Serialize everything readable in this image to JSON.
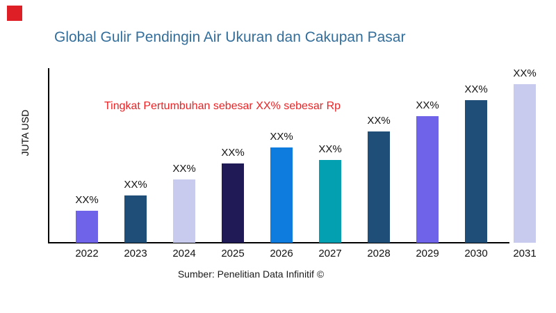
{
  "brand": {
    "logo_color": "#DF1F26"
  },
  "header": {
    "title": "Global Gulir Pendingin Air Ukuran dan Cakupan Pasar",
    "title_color": "#336E9B"
  },
  "annotation": {
    "text": "Tingkat Pertumbuhan sebesar XX% sebesar Rp",
    "color": "#EC2224"
  },
  "axes": {
    "y_label": "JUTA USD",
    "x_label": ""
  },
  "footer": {
    "source": "Sumber: Penelitian Data Infinitif ©"
  },
  "chart_data": {
    "type": "bar",
    "title": "Global Gulir Pendingin Air Ukuran dan Cakupan Pasar",
    "categories": [
      "2022",
      "2023",
      "2024",
      "2025",
      "2026",
      "2027",
      "2028",
      "2029",
      "2030",
      "2031"
    ],
    "values": [
      20,
      30,
      40,
      50,
      60,
      52,
      70,
      80,
      90,
      100
    ],
    "value_note": "relative bar heights, index where 2031 = 100; actual values masked as XX% in source image",
    "bar_labels": [
      "XX%",
      "XX%",
      "XX%",
      "XX%",
      "XX%",
      "XX%",
      "XX%",
      "XX%",
      "XX%",
      "XX%"
    ],
    "bar_colors": [
      "#6F64E9",
      "#1F4E79",
      "#C8CBEE",
      "#201A56",
      "#0E7BDF",
      "#02A0B1",
      "#1F4E79",
      "#6F64E9",
      "#1F4E79",
      "#C8CBEE"
    ],
    "xlabel": "",
    "ylabel": "JUTA USD",
    "ylim": [
      0,
      110
    ],
    "grid": false,
    "legend": "none",
    "annotation": "Tingkat Pertumbuhan sebesar XX% sebesar Rp",
    "source": "Sumber: Penelitian Data Infinitif ©"
  }
}
